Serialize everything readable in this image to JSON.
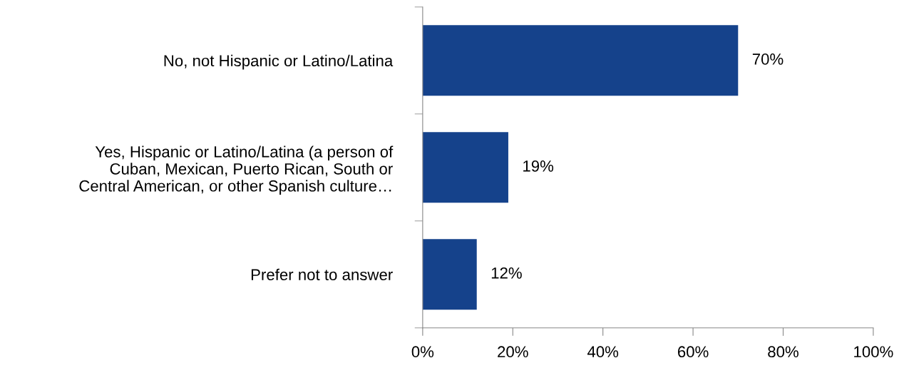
{
  "chart_data": {
    "type": "bar",
    "orientation": "horizontal",
    "categories": [
      "No, not Hispanic or Latino/Latina",
      "Yes, Hispanic or Latino/Latina (a person of\nCuban, Mexican, Puerto Rican, South or\nCentral American, or other Spanish culture…",
      "Prefer not to answer"
    ],
    "values": [
      70,
      19,
      12
    ],
    "value_labels": [
      "70%",
      "19%",
      "12%"
    ],
    "color": "#15428b",
    "xlim": [
      0,
      100
    ],
    "xticks": [
      {
        "value": 0,
        "label": "0%"
      },
      {
        "value": 20,
        "label": "20%"
      },
      {
        "value": 40,
        "label": "40%"
      },
      {
        "value": 60,
        "label": "60%"
      },
      {
        "value": 80,
        "label": "80%"
      },
      {
        "value": 100,
        "label": "100%"
      }
    ],
    "grid": false,
    "legend": false
  }
}
